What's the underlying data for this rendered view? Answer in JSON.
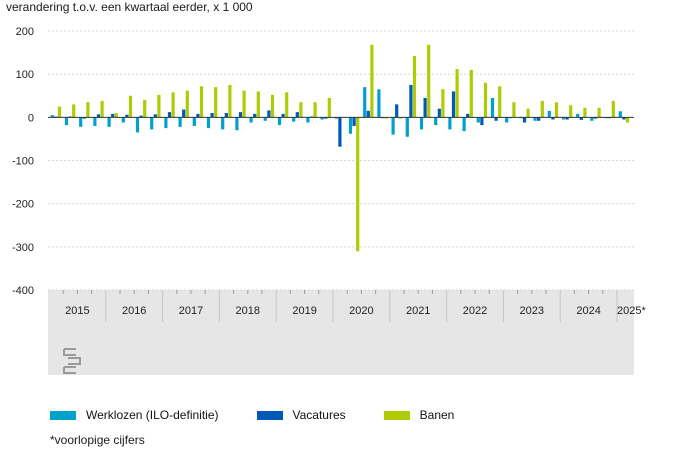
{
  "chart_data": {
    "type": "bar",
    "title": "verandering t.o.v. een kwartaal eerder, x 1 000",
    "xlabel": "",
    "ylabel": "",
    "ylim": [
      -400,
      200
    ],
    "yticks": [
      200,
      100,
      0,
      -100,
      -200,
      -300,
      -400
    ],
    "grid": true,
    "years": [
      "2015",
      "2016",
      "2017",
      "2018",
      "2019",
      "2020",
      "2021",
      "2022",
      "2023",
      "2024",
      "2025*"
    ],
    "quarters_per_year": [
      4,
      4,
      4,
      4,
      4,
      4,
      4,
      4,
      4,
      4,
      1
    ],
    "categories": [
      "2015 Q1",
      "2015 Q2",
      "2015 Q3",
      "2015 Q4",
      "2016 Q1",
      "2016 Q2",
      "2016 Q3",
      "2016 Q4",
      "2017 Q1",
      "2017 Q2",
      "2017 Q3",
      "2017 Q4",
      "2018 Q1",
      "2018 Q2",
      "2018 Q3",
      "2018 Q4",
      "2019 Q1",
      "2019 Q2",
      "2019 Q3",
      "2019 Q4",
      "2020 Q1",
      "2020 Q2",
      "2020 Q3",
      "2020 Q4",
      "2021 Q1",
      "2021 Q2",
      "2021 Q3",
      "2021 Q4",
      "2022 Q1",
      "2022 Q2",
      "2022 Q3",
      "2022 Q4",
      "2023 Q1",
      "2023 Q2",
      "2023 Q3",
      "2023 Q4",
      "2024 Q1",
      "2024 Q2",
      "2024 Q3",
      "2024 Q4",
      "2025* Q1"
    ],
    "series": [
      {
        "name": "Werklozen (ILO-definitie)",
        "color": "#00a1cd",
        "values": [
          5,
          -18,
          -22,
          -20,
          -22,
          -12,
          -35,
          -28,
          -25,
          -22,
          -20,
          -25,
          -28,
          -30,
          -12,
          -8,
          -18,
          -10,
          -12,
          -5,
          -3,
          -38,
          70,
          65,
          -40,
          -45,
          -28,
          -18,
          -28,
          -32,
          -12,
          45,
          -12,
          -2,
          -8,
          15,
          -5,
          8,
          -8,
          -2,
          14
        ]
      },
      {
        "name": "Vacatures",
        "color": "#0058b8",
        "values": [
          2,
          2,
          -3,
          7,
          8,
          6,
          4,
          7,
          12,
          18,
          8,
          10,
          10,
          12,
          8,
          16,
          8,
          12,
          2,
          -3,
          -68,
          -20,
          15,
          -2,
          30,
          75,
          45,
          20,
          60,
          8,
          -18,
          -8,
          -2,
          -12,
          -8,
          -5,
          -5,
          -6,
          -3,
          -2,
          -5
        ]
      },
      {
        "name": "Banen",
        "color": "#afcb05",
        "values": [
          25,
          30,
          35,
          38,
          10,
          50,
          40,
          52,
          58,
          62,
          72,
          70,
          75,
          62,
          60,
          52,
          58,
          35,
          35,
          45,
          0,
          -310,
          168,
          -3,
          -3,
          142,
          168,
          65,
          112,
          110,
          80,
          72,
          35,
          20,
          38,
          35,
          28,
          22,
          22,
          38,
          -12
        ]
      }
    ],
    "legend": [
      "Werklozen (ILO-definitie)",
      "Vacatures",
      "Banen"
    ],
    "footnote": "*voorlopige cijfers",
    "source_logo_text": "cbs"
  }
}
